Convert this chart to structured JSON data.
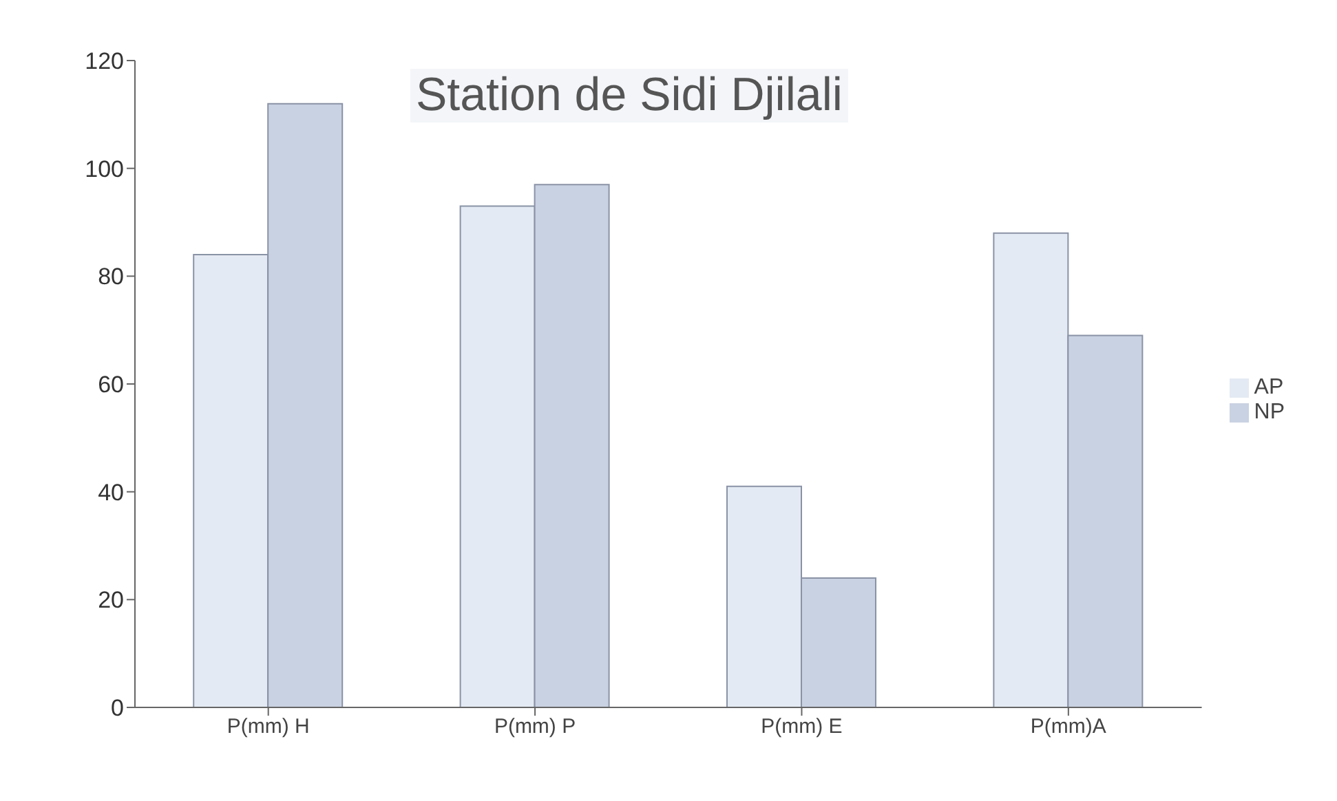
{
  "chart_data": {
    "type": "bar",
    "title": "Station de Sidi Djilali",
    "categories": [
      "P(mm) H",
      "P(mm) P",
      "P(mm) E",
      "P(mm)A"
    ],
    "series": [
      {
        "name": "AP",
        "color": "#e4eaf3",
        "values": [
          84,
          93,
          41,
          88
        ]
      },
      {
        "name": "NP",
        "color": "#c9d2e2",
        "values": [
          112,
          97,
          24,
          69
        ]
      }
    ],
    "ylim": [
      0,
      120
    ],
    "yticks": [
      0,
      20,
      40,
      60,
      80,
      100,
      120
    ],
    "legend": "right"
  }
}
